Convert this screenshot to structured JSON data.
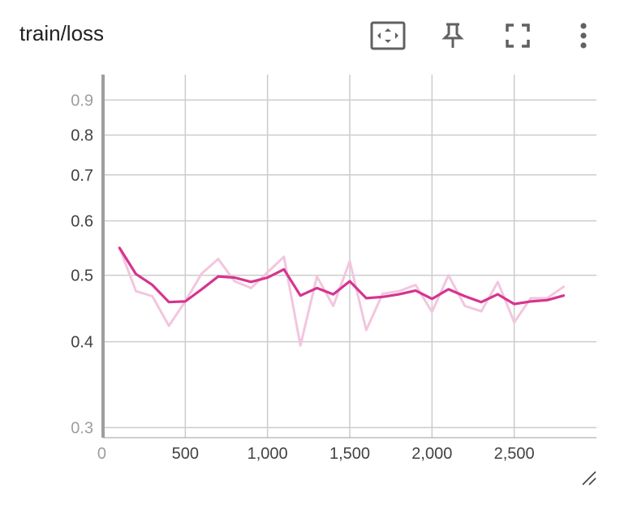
{
  "card": {
    "title": "train/loss",
    "toolbar": {
      "fit_icon": "fit-to-domain-icon",
      "pin_icon": "pin-icon",
      "fullscreen_icon": "fullscreen-icon",
      "more_icon": "more-vert-icon"
    },
    "resize_icon": "resize-handle-icon"
  },
  "colors": {
    "smoothed": "#d6348f",
    "raw": "#f2c6df",
    "grid": "#cccccc",
    "axis": "#9e9e9e"
  },
  "chart_data": {
    "type": "line",
    "title": "train/loss",
    "xlabel": "",
    "ylabel": "",
    "y_scale": "log",
    "xlim": [
      0,
      3000
    ],
    "ylim": [
      0.29,
      0.98
    ],
    "x_ticks": [
      0,
      500,
      1000,
      1500,
      2000,
      2500
    ],
    "x_tick_labels": [
      "0",
      "500",
      "1,000",
      "1,500",
      "2,000",
      "2,500"
    ],
    "y_ticks": [
      0.3,
      0.4,
      0.5,
      0.6,
      0.7,
      0.8,
      0.9
    ],
    "y_tick_labels": [
      "0.3",
      "0.4",
      "0.5",
      "0.6",
      "0.7",
      "0.8",
      "0.9"
    ],
    "grid": true,
    "x": [
      100,
      200,
      300,
      400,
      500,
      600,
      700,
      800,
      900,
      1000,
      1100,
      1200,
      1300,
      1400,
      1500,
      1600,
      1700,
      1800,
      1900,
      2000,
      2100,
      2200,
      2300,
      2400,
      2500,
      2600,
      2700,
      2800
    ],
    "series": [
      {
        "role": "raw",
        "values": [
          0.548,
          0.474,
          0.466,
          0.422,
          0.458,
          0.503,
          0.528,
          0.49,
          0.479,
          0.505,
          0.532,
          0.395,
          0.498,
          0.451,
          0.524,
          0.416,
          0.47,
          0.474,
          0.484,
          0.442,
          0.5,
          0.451,
          0.443,
          0.489,
          0.427,
          0.463,
          0.463,
          0.481
        ]
      },
      {
        "role": "smoothed",
        "values": [
          0.548,
          0.502,
          0.484,
          0.457,
          0.458,
          0.477,
          0.498,
          0.496,
          0.489,
          0.496,
          0.51,
          0.467,
          0.479,
          0.469,
          0.49,
          0.463,
          0.465,
          0.469,
          0.475,
          0.462,
          0.477,
          0.466,
          0.457,
          0.469,
          0.454,
          0.458,
          0.46,
          0.467
        ]
      }
    ]
  }
}
